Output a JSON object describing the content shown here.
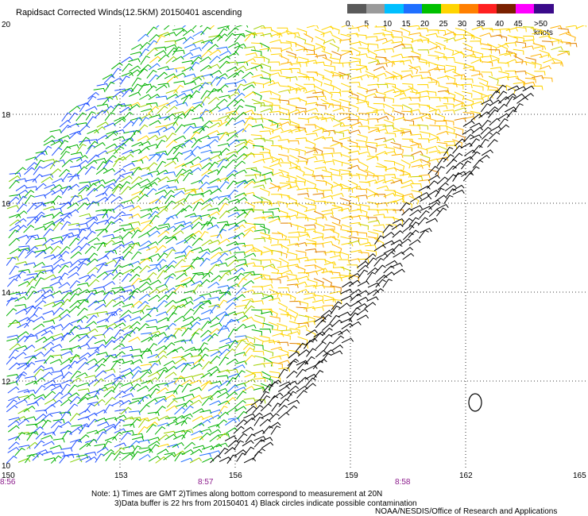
{
  "title": "Rapidsact Corrected Winds(12.5KM) 20150401 ascending",
  "lat_labels": [
    "20",
    "18",
    "16",
    "14",
    "12",
    "10"
  ],
  "lon_labels": [
    "150",
    "153",
    "156",
    "159",
    "162",
    "165"
  ],
  "time_labels": [
    "8:56",
    "8:57",
    "8:58"
  ],
  "colorbar": {
    "labels": [
      "0",
      "5",
      "10",
      "15",
      "20",
      "25",
      "30",
      "35",
      "40",
      "45",
      ">50 knots"
    ],
    "colors": [
      "#5a5a5a",
      "#9a9a9a",
      "#00bfff",
      "#1f6fff",
      "#00c000",
      "#ffd400",
      "#ff7f00",
      "#ff2020",
      "#7a2000",
      "#ff00ff",
      "#3a0a8a"
    ]
  },
  "notes": [
    "Note: 1) Times are GMT 2)Times along bottom correspond to measurement at 20N",
    "3)Data buffer is 22 hrs from 20150401 4) Black circles indicate possible contamination"
  ],
  "credit": "NOAA/NESDIS/Office of Research and Applications",
  "legend_unit": "knots"
}
